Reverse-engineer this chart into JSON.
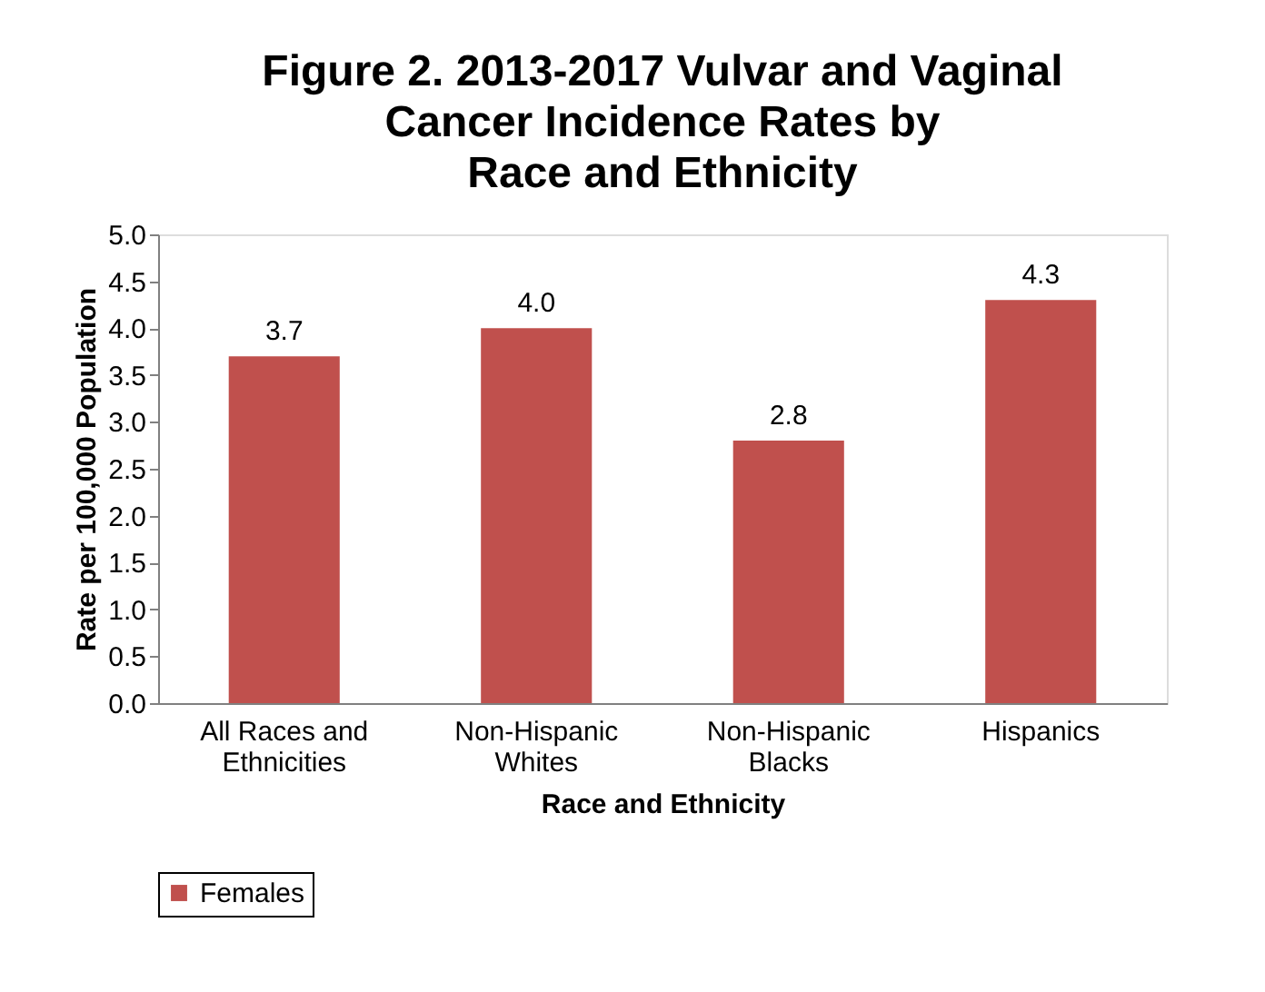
{
  "chart_data": {
    "type": "bar",
    "title": "Figure 2.  2013-2017 Vulvar and Vaginal\nCancer Incidence Rates by\nRace and Ethnicity",
    "xlabel": "Race and Ethnicity",
    "ylabel": "Rate per 100,000 Population",
    "categories": [
      "All Races and\nEthnicities",
      "Non-Hispanic\nWhites",
      "Non-Hispanic\nBlacks",
      "Hispanics"
    ],
    "series": [
      {
        "name": "Females",
        "color": "#c0504d",
        "values": [
          3.7,
          4.0,
          2.8,
          4.3
        ],
        "value_labels": [
          "3.7",
          "4.0",
          "2.8",
          "4.3"
        ]
      }
    ],
    "ylim": [
      0,
      5
    ],
    "yticks": [
      {
        "value": 0,
        "label": "0.0"
      },
      {
        "value": 0.5,
        "label": "0.5"
      },
      {
        "value": 1,
        "label": "1.0"
      },
      {
        "value": 1.5,
        "label": "1.5"
      },
      {
        "value": 2,
        "label": "2.0"
      },
      {
        "value": 2.5,
        "label": "2.5"
      },
      {
        "value": 3,
        "label": "3.0"
      },
      {
        "value": 3.5,
        "label": "3.5"
      },
      {
        "value": 4,
        "label": "4.0"
      },
      {
        "value": 4.5,
        "label": "4.5"
      },
      {
        "value": 5,
        "label": "5.0"
      }
    ],
    "grid": false,
    "legend": "bottom"
  }
}
